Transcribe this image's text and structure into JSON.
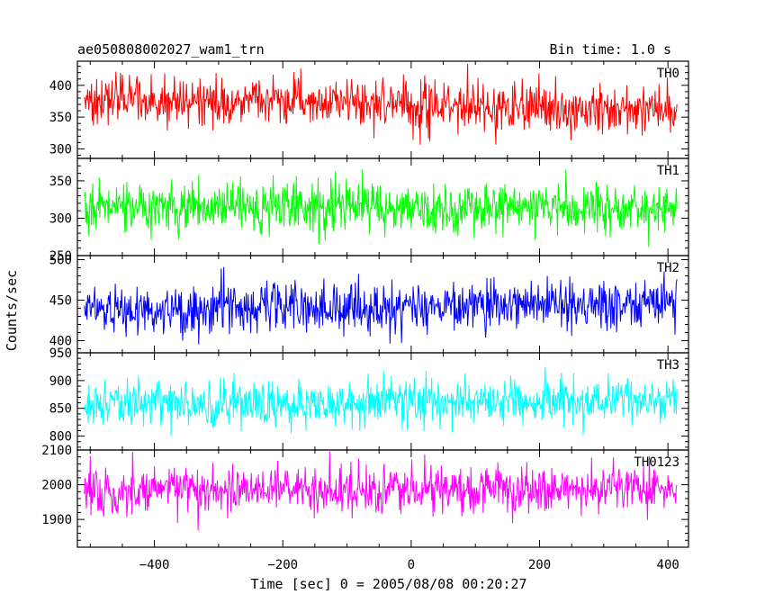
{
  "chart_data": {
    "type": "line",
    "title_left": "ae050808002027_wam1_trn",
    "title_right": "Bin time: 1.0 s",
    "xlabel": "Time [sec] 0 = 2005/08/08 00:20:27",
    "ylabel": "Counts/sec",
    "xlim": [
      -520,
      432
    ],
    "x_ticks": [
      -400,
      -200,
      0,
      200,
      400
    ],
    "x_tick_labels": [
      "−400",
      "−200",
      "0",
      "200",
      "400"
    ],
    "x_data_range": [
      -509,
      414
    ],
    "x_step": 1,
    "grid": false,
    "panels": [
      {
        "name": "TH0",
        "color": "#ff0000",
        "ylim": [
          285,
          438
        ],
        "y_ticks": [
          300,
          350,
          400
        ],
        "y_tick_labels": [
          "300",
          "350",
          "400"
        ],
        "mean": 370,
        "std": 19,
        "mean_trend": [
          378,
          362
        ]
      },
      {
        "name": "TH1",
        "color": "#00ff00",
        "ylim": [
          250,
          380
        ],
        "y_ticks": [
          250,
          300,
          350
        ],
        "y_tick_labels": [
          "250",
          "300",
          "350"
        ],
        "mean": 314,
        "std": 17,
        "mean_trend": [
          314,
          314
        ]
      },
      {
        "name": "TH2",
        "color": "#0000ff",
        "ylim": [
          385,
          505
        ],
        "y_ticks": [
          400,
          450,
          500
        ],
        "y_tick_labels": [
          "400",
          "450",
          "500"
        ],
        "mean": 440,
        "std": 15,
        "mean_trend": [
          436,
          446
        ]
      },
      {
        "name": "TH3",
        "color": "#00ffff",
        "ylim": [
          775,
          950
        ],
        "y_ticks": [
          800,
          850,
          900,
          950
        ],
        "y_tick_labels": [
          "800",
          "850",
          "900",
          "950"
        ],
        "mean": 860,
        "std": 21,
        "mean_trend": [
          858,
          862
        ]
      },
      {
        "name": "TH0123",
        "color": "#ff00ff",
        "ylim": [
          1820,
          2100
        ],
        "y_ticks": [
          1900,
          2000,
          2100
        ],
        "y_tick_labels": [
          "1900",
          "2000",
          "2100"
        ],
        "mean": 1985,
        "std": 33,
        "mean_trend": [
          1980,
          1990
        ]
      }
    ]
  }
}
